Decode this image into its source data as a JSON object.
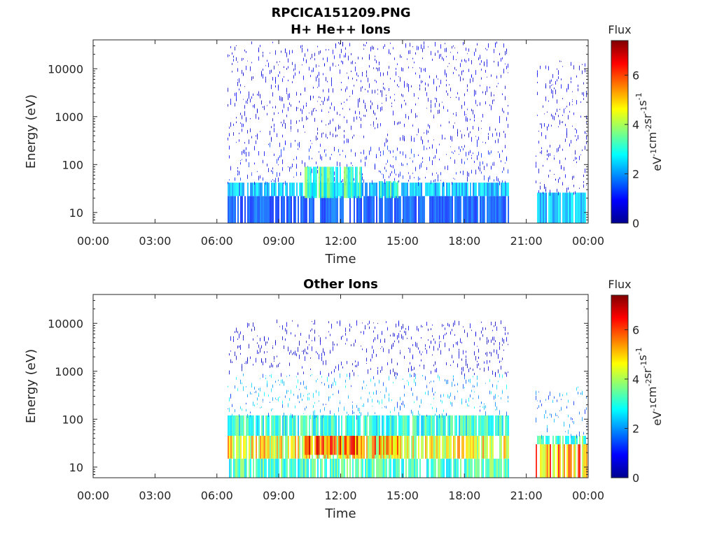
{
  "figure": {
    "title_line1": "RPCICA151209.PNG"
  },
  "chart_data": [
    {
      "type": "heatmap",
      "title": "H+ He++ Ions",
      "xlabel": "Time",
      "ylabel": "Energy (eV)",
      "x_ticks": [
        "00:00",
        "03:00",
        "06:00",
        "09:00",
        "12:00",
        "15:00",
        "18:00",
        "21:00",
        "00:00"
      ],
      "x_range_hours": [
        0,
        24
      ],
      "y_scale": "log",
      "y_ticks": [
        "10",
        "100",
        "1000",
        "10000"
      ],
      "y_tick_values": [
        10,
        100,
        1000,
        10000
      ],
      "ylim": [
        6,
        40000
      ],
      "colorbar": {
        "label": "Flux",
        "unit_label": "eV-1cm-2sr-1s-1",
        "range": [
          0,
          7.4
        ],
        "ticks": [
          "0",
          "2",
          "4",
          "6"
        ],
        "tick_values": [
          0,
          2,
          4,
          6
        ]
      },
      "data_coverage_hours": [
        [
          6.5,
          20.1
        ],
        [
          21.4,
          23.9
        ]
      ],
      "bands": [
        {
          "t_start": 6.5,
          "t_end": 20.1,
          "e_min": 22,
          "e_max": 42,
          "flux": 2.3
        },
        {
          "t_start": 6.5,
          "t_end": 20.1,
          "e_min": 6,
          "e_max": 22,
          "flux": 1.5
        },
        {
          "t_start": 6.5,
          "t_end": 20.1,
          "e_min": 42,
          "e_max": 300,
          "flux": 1.0
        },
        {
          "t_start": 6.5,
          "t_end": 20.1,
          "e_min": 300,
          "e_max": 38000,
          "flux": 0.7
        },
        {
          "t_start": 10.2,
          "t_end": 13.0,
          "e_min": 20,
          "e_max": 90,
          "flux": 3.2
        },
        {
          "t_start": 13.8,
          "t_end": 14.8,
          "e_min": 20,
          "e_max": 45,
          "flux": 3.0
        },
        {
          "t_start": 21.4,
          "t_end": 23.9,
          "e_min": 6,
          "e_max": 26,
          "flux": 2.3
        },
        {
          "t_start": 21.4,
          "t_end": 23.9,
          "e_min": 26,
          "e_max": 15000,
          "flux": 0.7
        }
      ]
    },
    {
      "type": "heatmap",
      "title": "Other Ions",
      "xlabel": "Time",
      "ylabel": "Energy (eV)",
      "x_ticks": [
        "00:00",
        "03:00",
        "06:00",
        "09:00",
        "12:00",
        "15:00",
        "18:00",
        "21:00",
        "00:00"
      ],
      "x_range_hours": [
        0,
        24
      ],
      "y_scale": "log",
      "y_ticks": [
        "10",
        "100",
        "1000",
        "10000"
      ],
      "y_tick_values": [
        10,
        100,
        1000,
        10000
      ],
      "ylim": [
        6,
        40000
      ],
      "colorbar": {
        "label": "Flux",
        "unit_label": "eV-1cm-2sr-1s-1",
        "range": [
          0,
          7.4
        ],
        "ticks": [
          "0",
          "2",
          "4",
          "6"
        ],
        "tick_values": [
          0,
          2,
          4,
          6
        ]
      },
      "data_coverage_hours": [
        [
          6.5,
          20.1
        ],
        [
          21.4,
          23.9
        ]
      ],
      "bands": [
        {
          "t_start": 6.5,
          "t_end": 20.1,
          "e_min": 15,
          "e_max": 45,
          "flux": 4.6
        },
        {
          "t_start": 6.5,
          "t_end": 20.1,
          "e_min": 6,
          "e_max": 15,
          "flux": 3.2
        },
        {
          "t_start": 6.5,
          "t_end": 20.1,
          "e_min": 45,
          "e_max": 120,
          "flux": 3.0
        },
        {
          "t_start": 6.5,
          "t_end": 20.1,
          "e_min": 120,
          "e_max": 900,
          "flux": 2.1
        },
        {
          "t_start": 6.5,
          "t_end": 20.1,
          "e_min": 900,
          "e_max": 12000,
          "flux": 0.6
        },
        {
          "t_start": 10.2,
          "t_end": 13.0,
          "e_min": 18,
          "e_max": 45,
          "flux": 5.6
        },
        {
          "t_start": 13.6,
          "t_end": 14.8,
          "e_min": 18,
          "e_max": 45,
          "flux": 5.3
        },
        {
          "t_start": 21.4,
          "t_end": 23.9,
          "e_min": 6,
          "e_max": 30,
          "flux": 5.2
        },
        {
          "t_start": 21.4,
          "t_end": 23.9,
          "e_min": 30,
          "e_max": 45,
          "flux": 3.4
        },
        {
          "t_start": 21.4,
          "t_end": 23.9,
          "e_min": 45,
          "e_max": 500,
          "flux": 1.8
        }
      ]
    }
  ]
}
